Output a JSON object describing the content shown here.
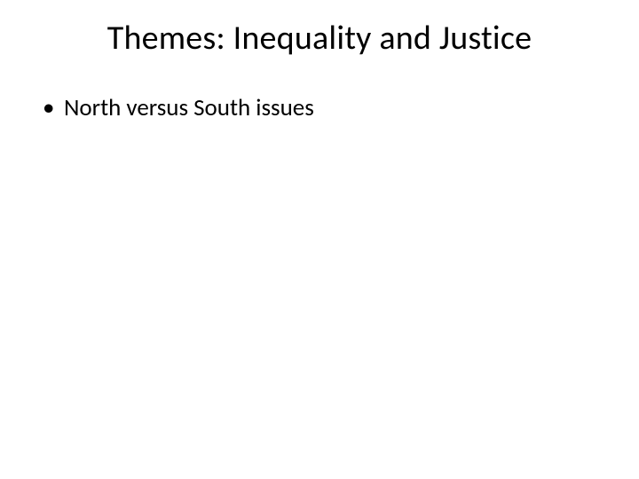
{
  "slide": {
    "title": "Themes: Inequality and Justice",
    "title_fontsize": 38,
    "title_color": "#000000",
    "title_align": "center",
    "bullets": [
      {
        "text": "North versus South issues"
      }
    ],
    "bullet_fontsize": 27,
    "bullet_color": "#000000",
    "background_color": "#ffffff",
    "font_family": "Calibri"
  }
}
